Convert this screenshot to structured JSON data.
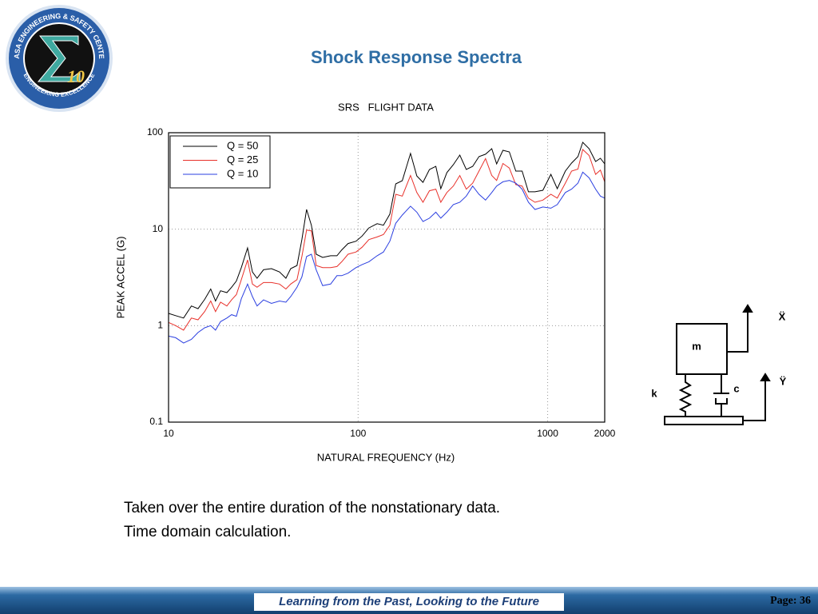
{
  "header": {
    "title": "Shock Response Spectra"
  },
  "logo": {
    "top_text": "NASA ENGINEERING & SAFETY CENTER",
    "bottom_text": "ENGINEERING EXCELLENCE",
    "center_text": "10"
  },
  "chart_data": {
    "type": "line",
    "title": "SRS   FLIGHT DATA",
    "x_label": "NATURAL FREQUENCY (Hz)",
    "y_label": "PEAK ACCEL (G)",
    "x": [
      10,
      10.9,
      12.0,
      13.2,
      14.3,
      15.5,
      16.7,
      17.7,
      18.8,
      20.3,
      21.5,
      22.8,
      24.2,
      26.1,
      27.7,
      29.3,
      31.7,
      34.9,
      38.5,
      41.6,
      44.1,
      47.6,
      50.5,
      53.5,
      56.7,
      60.1,
      65.0,
      71.6,
      77.3,
      82.0,
      88.5,
      97.5,
      105,
      114,
      126,
      136,
      147,
      158,
      171,
      189,
      204,
      220,
      238,
      257,
      273,
      294,
      318,
      344,
      372,
      402,
      434,
      470,
      507,
      538,
      581,
      628,
      679,
      733,
      792,
      857,
      944,
      1040,
      1124,
      1239,
      1337,
      1445,
      1531,
      1656,
      1790,
      1897,
      2000
    ],
    "series": [
      {
        "name": "Q = 50",
        "color": "#000000",
        "values": [
          1.34,
          1.27,
          1.2,
          1.6,
          1.5,
          1.87,
          2.4,
          1.8,
          2.3,
          2.2,
          2.5,
          2.9,
          4.0,
          6.4,
          3.6,
          3.1,
          3.8,
          3.9,
          3.6,
          3.1,
          3.9,
          4.2,
          7.8,
          16,
          11,
          5.5,
          5.1,
          5.3,
          5.3,
          6.1,
          7.1,
          7.5,
          8.5,
          10.3,
          11.4,
          11,
          14.3,
          29.5,
          31.8,
          61,
          35.6,
          30.6,
          41.6,
          44.8,
          26.3,
          38.6,
          46.6,
          58.6,
          41.6,
          44.8,
          56.5,
          59.8,
          68.3,
          47.5,
          65.7,
          63.3,
          40,
          40,
          24.4,
          24.4,
          25.3,
          37,
          26.3,
          40,
          48.4,
          56.5,
          79.6,
          68.3,
          50.3,
          54.3,
          47.5
        ]
      },
      {
        "name": "Q = 25",
        "color": "#e8302a",
        "values": [
          1.08,
          1.0,
          0.9,
          1.2,
          1.15,
          1.4,
          1.8,
          1.4,
          1.75,
          1.6,
          1.85,
          2.1,
          3.0,
          4.8,
          2.7,
          2.5,
          2.8,
          2.8,
          2.7,
          2.4,
          2.7,
          3.0,
          5.2,
          9.8,
          9.6,
          4.2,
          4.0,
          4.0,
          4.1,
          4.6,
          5.5,
          5.8,
          6.5,
          7.8,
          8.3,
          8.8,
          11,
          23,
          22,
          36,
          24,
          19,
          25,
          26,
          19,
          24,
          28,
          36,
          26,
          30,
          40,
          54,
          36,
          32,
          48,
          43,
          29,
          28,
          21,
          19,
          20,
          23,
          21,
          30,
          40,
          42,
          67,
          58,
          37,
          41,
          31
        ]
      },
      {
        "name": "Q = 10",
        "color": "#2b3fe0",
        "values": [
          0.78,
          0.75,
          0.66,
          0.72,
          0.85,
          0.95,
          1.0,
          0.9,
          1.1,
          1.2,
          1.3,
          1.25,
          1.9,
          2.7,
          2.0,
          1.6,
          1.85,
          1.7,
          1.8,
          1.75,
          2.0,
          2.5,
          3.2,
          5.2,
          5.5,
          3.8,
          2.6,
          2.7,
          3.3,
          3.3,
          3.5,
          4.0,
          4.3,
          4.6,
          5.3,
          5.8,
          7.5,
          11.5,
          14,
          17.3,
          15,
          12,
          13,
          15,
          13,
          15,
          18,
          19,
          22,
          28,
          23,
          20,
          24,
          28,
          31,
          32,
          30,
          26,
          19,
          16,
          17,
          16.5,
          18,
          24,
          26,
          30,
          39,
          34,
          26,
          22,
          21
        ]
      }
    ],
    "xlim": [
      10,
      2000
    ],
    "xticks": [
      10,
      100,
      1000,
      2000
    ],
    "xscale": "log",
    "ylim": [
      0.1,
      100
    ],
    "yticks": [
      0.1,
      1,
      10,
      100
    ],
    "yscale": "log",
    "grid": true,
    "legend": "upper left"
  },
  "diagram": {
    "mass": "m",
    "spring": "k",
    "damper": "c",
    "mass_accel": "Ẍ",
    "base_accel": "Ÿ"
  },
  "body": {
    "lines": [
      "Taken over the entire duration of the nonstationary data.",
      "Time domain calculation."
    ]
  },
  "footer": {
    "slogan": "Learning from the Past, Looking to the Future",
    "page": "Page: 36"
  }
}
